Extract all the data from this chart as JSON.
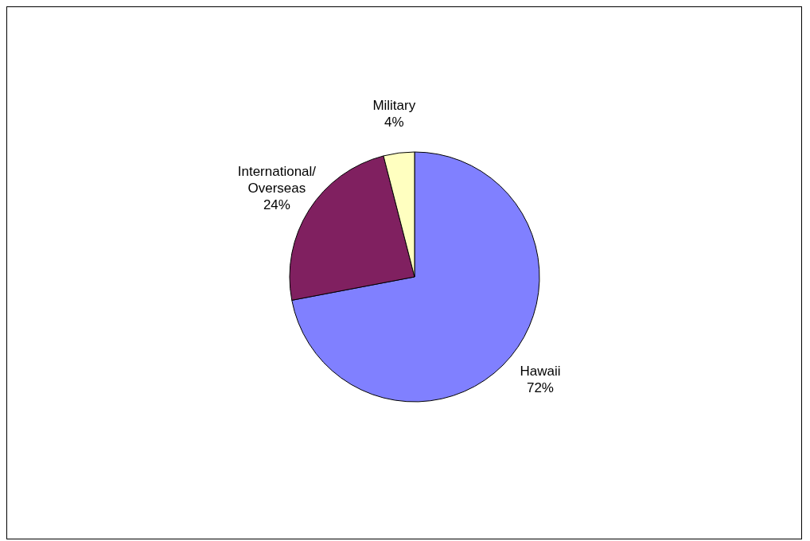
{
  "chart_data": {
    "type": "pie",
    "categories": [
      "Hawaii",
      "International/\nOverseas",
      "Military"
    ],
    "values": [
      72,
      24,
      4
    ],
    "colors": [
      "#8080ff",
      "#802060",
      "#ffffc0"
    ],
    "value_labels": [
      "72%",
      "24%",
      "4%"
    ]
  }
}
